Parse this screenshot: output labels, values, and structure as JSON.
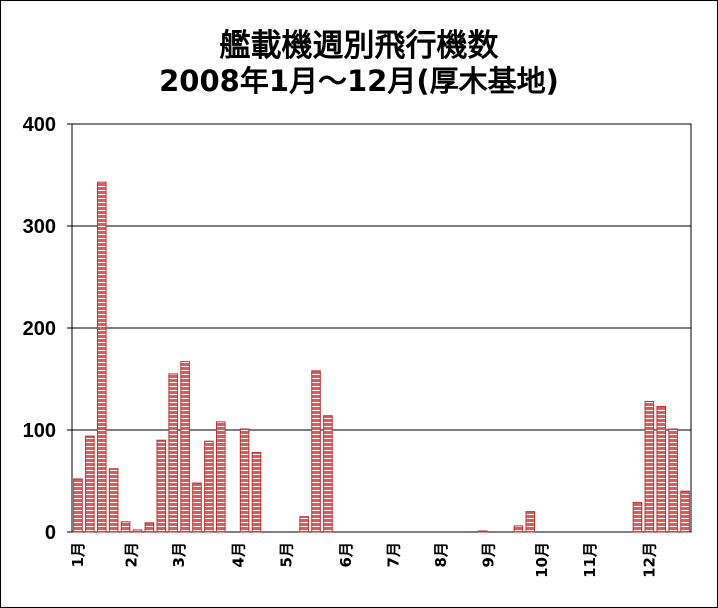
{
  "chart_data": {
    "type": "bar",
    "title": "艦載機週別飛行機数",
    "subtitle": "2008年1月～12月(厚木基地)",
    "xlabel": "",
    "ylabel": "",
    "ylim": [
      0,
      400
    ],
    "yticks": [
      "0",
      "100",
      "200",
      "300",
      "400"
    ],
    "grid": true,
    "legend": "none",
    "bar_color": "#e05a5a",
    "stripe_color": "#ffffff",
    "month_labels": [
      {
        "label": "1月",
        "week": 1
      },
      {
        "label": "2月",
        "week": 5.5
      },
      {
        "label": "3月",
        "week": 9.5
      },
      {
        "label": "4月",
        "week": 14.5
      },
      {
        "label": "5月",
        "week": 18.5
      },
      {
        "label": "6月",
        "week": 23.5
      },
      {
        "label": "7月",
        "week": 27.5
      },
      {
        "label": "8月",
        "week": 31.5
      },
      {
        "label": "9月",
        "week": 35.5
      },
      {
        "label": "10月",
        "week": 40
      },
      {
        "label": "11月",
        "week": 44
      },
      {
        "label": "12月",
        "week": 49
      }
    ],
    "weeks": [
      1,
      2,
      3,
      4,
      5,
      6,
      7,
      8,
      9,
      10,
      11,
      12,
      13,
      14,
      15,
      16,
      17,
      18,
      19,
      20,
      21,
      22,
      23,
      24,
      25,
      26,
      27,
      28,
      29,
      30,
      31,
      32,
      33,
      34,
      35,
      36,
      37,
      38,
      39,
      40,
      41,
      42,
      43,
      44,
      45,
      46,
      47,
      48,
      49,
      50,
      51,
      52
    ],
    "values": [
      52,
      94,
      343,
      62,
      10,
      2,
      9,
      90,
      155,
      167,
      48,
      89,
      108,
      0,
      101,
      78,
      0,
      0,
      0,
      15,
      158,
      114,
      0,
      0,
      0,
      0,
      0,
      0,
      0,
      0,
      0,
      0,
      0,
      0,
      1,
      0,
      0,
      6,
      20,
      0,
      0,
      0,
      0,
      0,
      0,
      0,
      0,
      29,
      128,
      123,
      101,
      40
    ]
  }
}
